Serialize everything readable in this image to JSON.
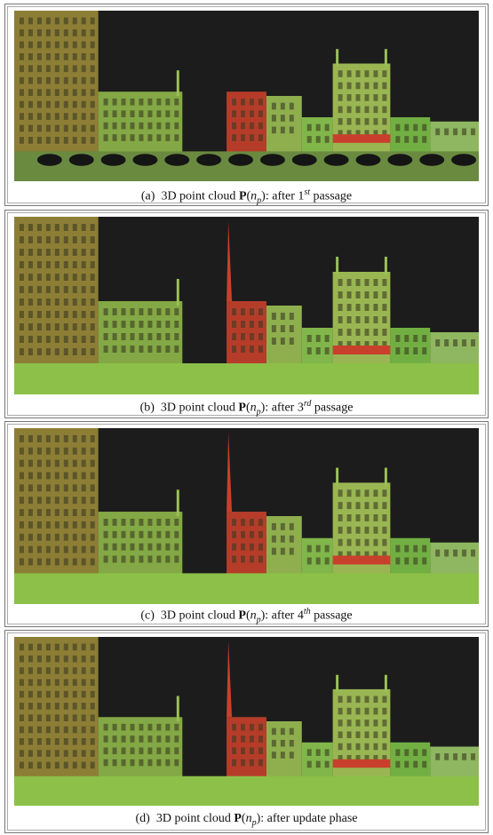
{
  "panels": [
    {
      "caption": {
        "label": "(a)",
        "text": "3D point cloud",
        "symbol": "P",
        "paren_open": "(",
        "var": "n",
        "sub": "p",
        "paren_close": ")",
        "after": ": after ",
        "ordinal": "1",
        "sup": "st",
        "tail": " passage"
      }
    },
    {
      "caption": {
        "label": "(b)",
        "text": "3D point cloud",
        "symbol": "P",
        "paren_open": "(",
        "var": "n",
        "sub": "p",
        "paren_close": ")",
        "after": ": after ",
        "ordinal": "3",
        "sup": "rd",
        "tail": " passage"
      }
    },
    {
      "caption": {
        "label": "(c)",
        "text": "3D point cloud",
        "symbol": "P",
        "paren_open": "(",
        "var": "n",
        "sub": "p",
        "paren_close": ")",
        "after": ": after ",
        "ordinal": "4",
        "sup": "th",
        "tail": " passage"
      }
    },
    {
      "caption": {
        "label": "(d)",
        "text": "3D point cloud",
        "symbol": "P",
        "paren_open": "(",
        "var": "n",
        "sub": "p",
        "paren_close": ")",
        "after": ": after update phase"
      }
    }
  ]
}
